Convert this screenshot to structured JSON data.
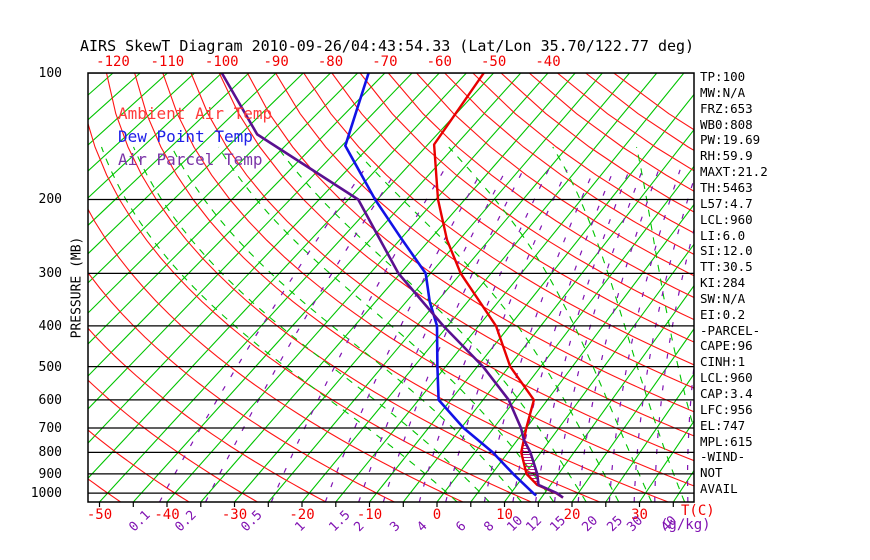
{
  "header": {
    "title": "AIRS SkewT Diagram 2010-09-26/04:43:54.33 (Lat/Lon 35.70/122.77 deg)"
  },
  "axes": {
    "y_label": "PRESSURE (MB)",
    "x_unit_temp": "T(C)",
    "x_unit_mix": "(g/kg)",
    "pressure_ticks": [
      100,
      200,
      300,
      400,
      500,
      600,
      700,
      800,
      900,
      1000
    ],
    "top_temp_ticks": [
      -120,
      -110,
      -100,
      -90,
      -80,
      -70,
      -60,
      -50,
      -40
    ],
    "bottom_temp_ticks": [
      -50,
      -40,
      -30,
      -20,
      -10,
      0,
      10,
      20,
      30
    ],
    "mixing_ratio_ticks": [
      0.1,
      0.2,
      0.5,
      1,
      1.5,
      2,
      3,
      4,
      6,
      8,
      10,
      12,
      15,
      20,
      25,
      30,
      40
    ]
  },
  "legend": {
    "items": [
      {
        "id": "ambient",
        "label": "Ambient Air Temp"
      },
      {
        "id": "dew",
        "label": "Dew Point Temp"
      },
      {
        "id": "parcel",
        "label": "Air Parcel Temp"
      }
    ]
  },
  "stats": {
    "items": [
      "TP:100",
      "MW:N/A",
      "FRZ:653",
      "WB0:808",
      "PW:19.69",
      "RH:59.9",
      "MAXT:21.2",
      "TH:5463",
      "L57:4.7",
      "LCL:960",
      "LI:6.0",
      "SI:12.0",
      "TT:30.5",
      "KI:284",
      "SW:N/A",
      "EI:0.2",
      "-PARCEL-",
      "CAPE:96",
      "CINH:1",
      "LCL:960",
      "CAP:3.4",
      "LFC:956",
      "EL:747",
      "MPL:615",
      "-WIND-",
      "NOT",
      "AVAIL"
    ]
  },
  "colors": {
    "ambient": "#e80000",
    "dew": "#1212e6",
    "parcel": "#5a1090",
    "legend_ambient": "#ff3a3a",
    "legend_dew": "#2020e8",
    "legend_parcel": "#7b35a8",
    "isotherm": "#00c400",
    "dry_adiabat": "#ff1414",
    "moist_adiabat": "#00c400",
    "mixing_ratio": "#8012b2",
    "isobar": "#000000",
    "temp_label": "#f20000",
    "mix_label": "#8012b2",
    "hatch": "#b02080"
  },
  "chart_data": {
    "type": "line",
    "projection": "skew-t log-p",
    "pressure_range_mb": [
      100,
      1050
    ],
    "grid": {
      "isobar_lines_mb": [
        100,
        200,
        300,
        400,
        500,
        600,
        700,
        800,
        900,
        1000
      ],
      "isotherm_step_c": 5,
      "dry_adiabat_theta_c": {
        "min": -60,
        "max": 200,
        "step": 10
      },
      "moist_adiabat_thetaw_c": {
        "min": 0,
        "max": 45,
        "step": 5
      },
      "mixing_ratio_lines_gkg": [
        0.1,
        0.2,
        0.5,
        1,
        1.5,
        2,
        3,
        4,
        6,
        8,
        10,
        12,
        15,
        20,
        25,
        30,
        40
      ]
    },
    "cape_region_mb": {
      "top": 747,
      "bottom": 956
    },
    "series": [
      {
        "id": "ambient",
        "name": "Ambient Air Temp",
        "points_p_t": [
          [
            100,
            -51.8
          ],
          [
            148,
            -48.9
          ],
          [
            200,
            -39.6
          ],
          [
            250,
            -32.0
          ],
          [
            300,
            -25.0
          ],
          [
            400,
            -12.2
          ],
          [
            500,
            -4.8
          ],
          [
            600,
            2.9
          ],
          [
            700,
            5.0
          ],
          [
            800,
            7.0
          ],
          [
            900,
            10.2
          ],
          [
            956,
            13.0
          ],
          [
            1000,
            16.7
          ],
          [
            1025,
            18.2
          ]
        ]
      },
      {
        "id": "dew",
        "name": "Dew Point Temp",
        "points_p_t": [
          [
            100,
            -73.0
          ],
          [
            149,
            -64.4
          ],
          [
            200,
            -50.4
          ],
          [
            246,
            -40.3
          ],
          [
            300,
            -30.8
          ],
          [
            350,
            -26.2
          ],
          [
            400,
            -21.7
          ],
          [
            500,
            -16.3
          ],
          [
            600,
            -11.9
          ],
          [
            700,
            -4.6
          ],
          [
            800,
            2.7
          ],
          [
            900,
            8.2
          ],
          [
            1000,
            13.3
          ],
          [
            1013,
            14.0
          ]
        ]
      },
      {
        "id": "parcel",
        "name": "Air Parcel Temp",
        "points_p_t": [
          [
            100,
            -100.0
          ],
          [
            140,
            -82.0
          ],
          [
            200,
            -53.3
          ],
          [
            300,
            -35.3
          ],
          [
            400,
            -20.7
          ],
          [
            500,
            -9.1
          ],
          [
            600,
            -1.0
          ],
          [
            700,
            4.2
          ],
          [
            747,
            6.0
          ],
          [
            800,
            8.4
          ],
          [
            900,
            11.8
          ],
          [
            956,
            13.2
          ],
          [
            1000,
            16.8
          ],
          [
            1025,
            18.2
          ]
        ]
      }
    ]
  }
}
